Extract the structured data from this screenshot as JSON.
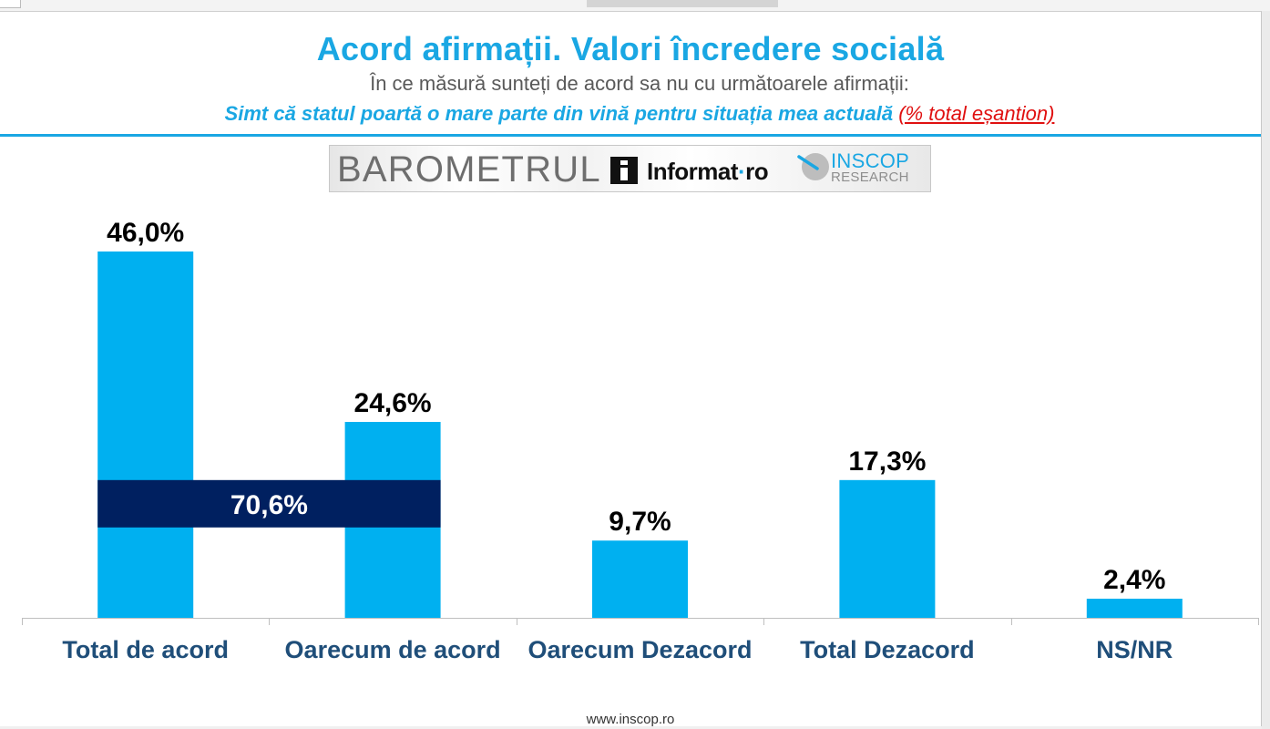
{
  "header": {
    "title": "Acord afirmații. Valori încredere socială",
    "subtitle": "În ce măsură sunteți de acord sa nu cu următoarele afirmații:",
    "question": "Simt că statul poartă o mare parte din vină pentru situația mea actuală",
    "question_note": "(% total eșantion)"
  },
  "logos": {
    "barometrul": "BAROMETRUL",
    "informat_main": "Informat",
    "informat_sep": "·",
    "informat_tld": "ro",
    "inscop": "INSCOP",
    "inscop_sub": "RESEARCH"
  },
  "chart_data": {
    "type": "bar",
    "categories": [
      "Total de acord",
      "Oarecum de acord",
      "Oarecum Dezacord",
      "Total Dezacord",
      "NS/NR"
    ],
    "values": [
      46.0,
      24.6,
      9.7,
      17.3,
      2.4
    ],
    "value_labels": [
      "46,0%",
      "24,6%",
      "9,7%",
      "17,3%",
      "2,4%"
    ],
    "ylim": [
      0,
      46.0
    ],
    "grid": false,
    "legend": "none",
    "bar_color": "#00b0f0",
    "label_color": "#000000",
    "category_color": "#1f4e79",
    "annotations": [
      {
        "text": "70,6%",
        "spans": [
          "Total de acord",
          "Oarecum de acord"
        ],
        "at_value": 17.3,
        "color": "#002060"
      }
    ]
  },
  "colors": {
    "accent": "#1aa7e3",
    "note": "#e01010",
    "subtitle": "#595959"
  },
  "footer": {
    "url": "www.inscop.ro"
  }
}
